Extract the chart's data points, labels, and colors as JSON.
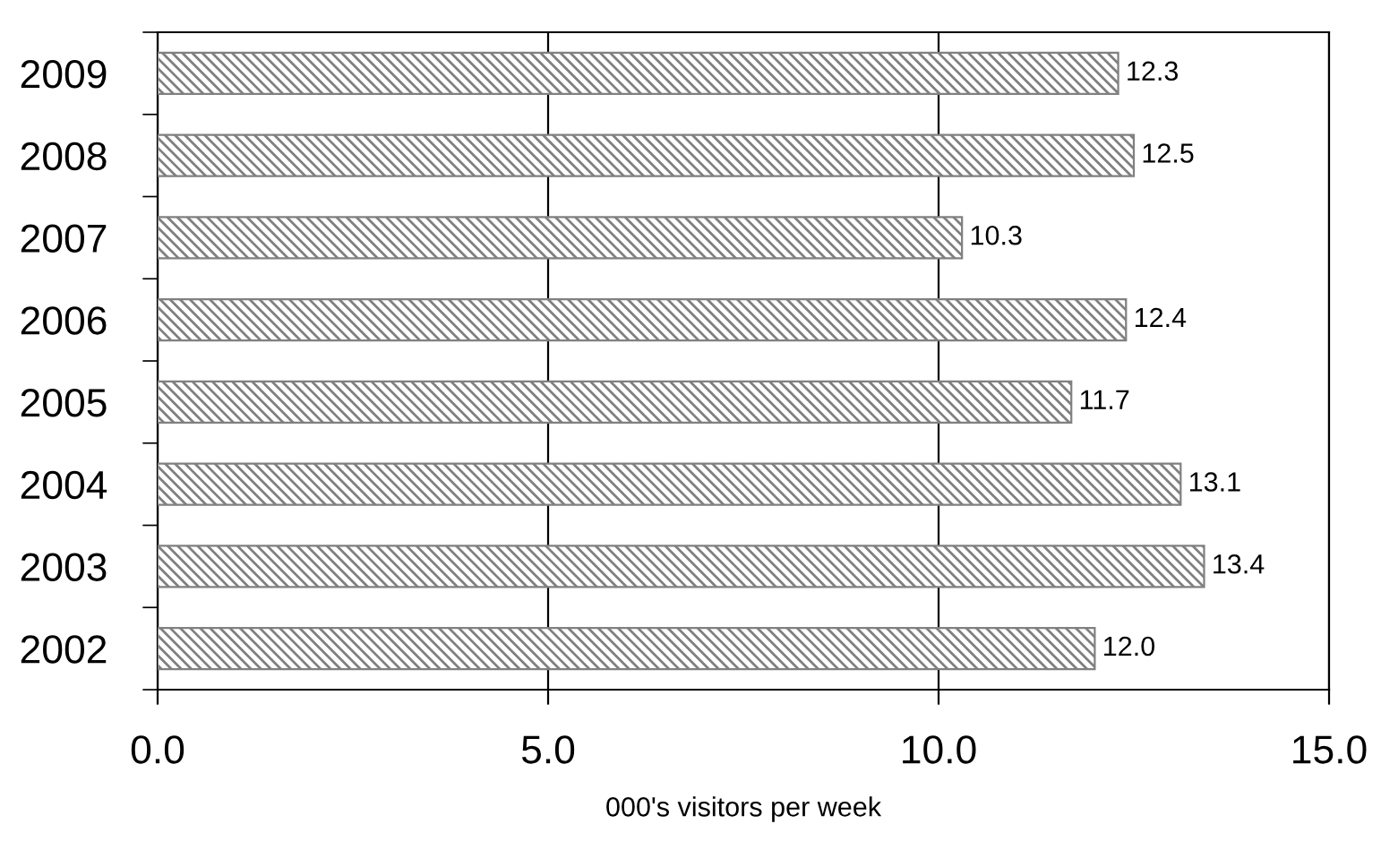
{
  "chart_data": {
    "type": "bar",
    "orientation": "horizontal",
    "xlabel": "000's visitors per week",
    "categories": [
      "2009",
      "2008",
      "2007",
      "2006",
      "2005",
      "2004",
      "2003",
      "2002"
    ],
    "values": [
      12.3,
      12.5,
      10.3,
      12.4,
      11.7,
      13.1,
      13.4,
      12.0
    ],
    "color": "#808080",
    "value_labels": [
      "12.3",
      "12.5",
      "10.3",
      "12.4",
      "11.7",
      "13.1",
      "13.4",
      "12.0"
    ],
    "xlim": [
      0,
      15
    ],
    "xticks": [
      {
        "value": 0,
        "label": "0.0"
      },
      {
        "value": 5,
        "label": "5.0"
      },
      {
        "value": 10,
        "label": "10.0"
      },
      {
        "value": 15,
        "label": "15.0"
      }
    ],
    "grid": "x"
  }
}
